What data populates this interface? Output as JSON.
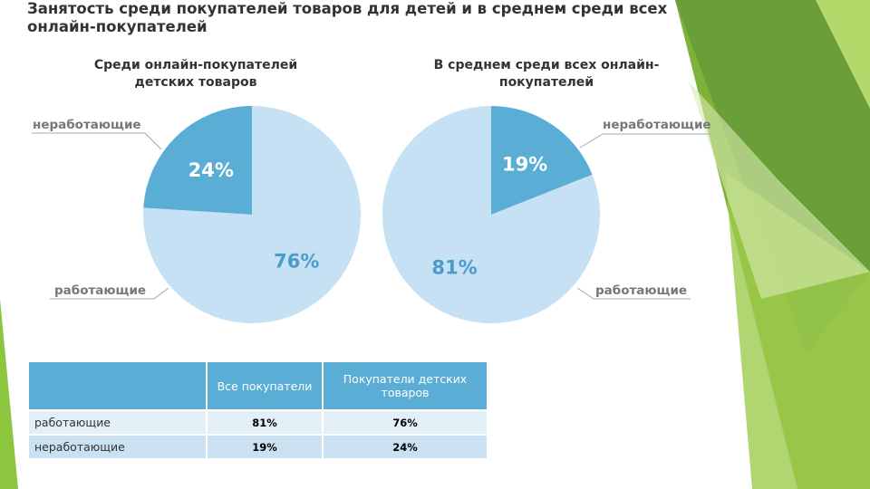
{
  "title": "Занятость среди покупателей товаров для детей и в среднем среди всех онлайн-покупателей",
  "chart_data": [
    {
      "type": "pie",
      "title": "Среди онлайн-покупателей детских товаров",
      "categories": [
        "неработающие",
        "работающие"
      ],
      "values": [
        24,
        76
      ],
      "value_labels": [
        "24%",
        "76%"
      ],
      "colors": [
        "#5aaed6",
        "#c5e1f3"
      ],
      "direction": "counterclockwise"
    },
    {
      "type": "pie",
      "title": "В среднем среди всех онлайн-покупателей",
      "categories": [
        "неработающие",
        "работающие"
      ],
      "values": [
        19,
        81
      ],
      "value_labels": [
        "19%",
        "81%"
      ],
      "colors": [
        "#5aaed6",
        "#c5e1f3"
      ],
      "direction": "clockwise"
    }
  ],
  "table": {
    "header": [
      "Все покупатели",
      "Покупатели детских товаров"
    ],
    "rows": [
      [
        "работающие",
        "81%",
        "76%"
      ],
      [
        "неработающие",
        "19%",
        "24%"
      ]
    ]
  }
}
